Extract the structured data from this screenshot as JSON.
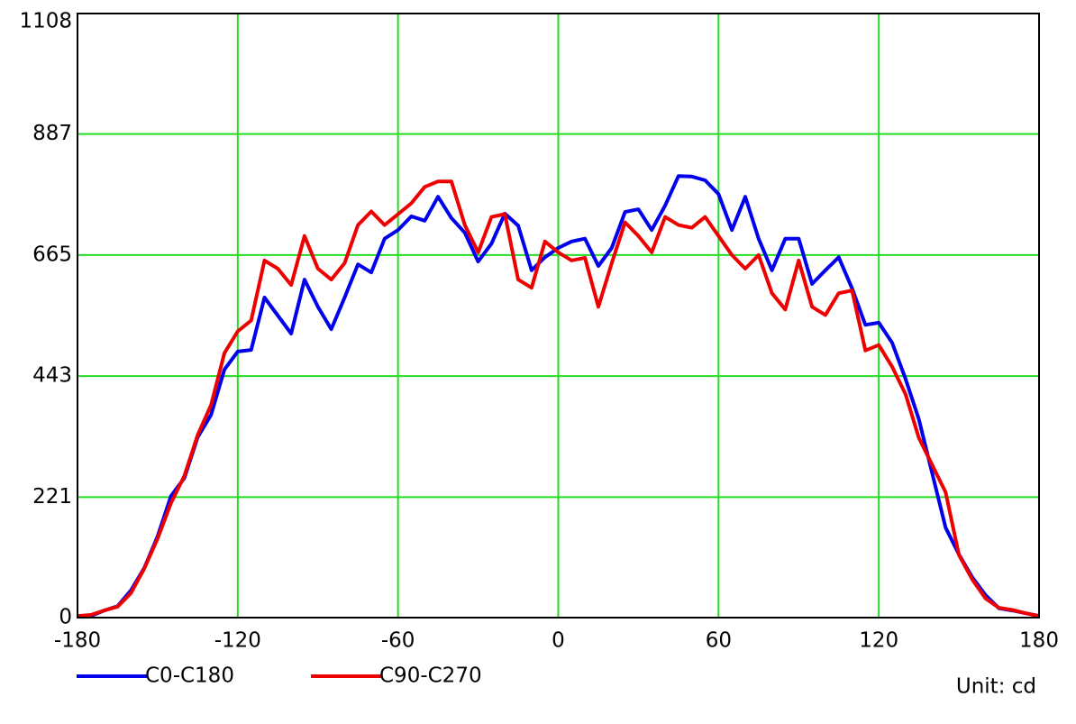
{
  "chart_data": {
    "type": "line",
    "x": [
      -180,
      -175,
      -170,
      -165,
      -160,
      -155,
      -150,
      -145,
      -140,
      -135,
      -130,
      -125,
      -120,
      -115,
      -110,
      -105,
      -100,
      -95,
      -90,
      -85,
      -80,
      -75,
      -70,
      -65,
      -60,
      -55,
      -50,
      -45,
      -40,
      -35,
      -30,
      -25,
      -20,
      -15,
      -10,
      -5,
      0,
      5,
      10,
      15,
      20,
      25,
      30,
      35,
      40,
      45,
      50,
      55,
      60,
      65,
      70,
      75,
      80,
      85,
      90,
      95,
      100,
      105,
      110,
      115,
      120,
      125,
      130,
      135,
      140,
      145,
      150,
      155,
      160,
      165,
      170,
      175,
      180
    ],
    "series": [
      {
        "name": "C0-C180",
        "color": "#0000ee",
        "values": [
          3,
          3,
          13,
          21,
          50,
          91,
          149,
          223,
          256,
          331,
          372,
          455,
          488,
          491,
          587,
          554,
          521,
          620,
          570,
          529,
          587,
          648,
          633,
          695,
          711,
          736,
          728,
          772,
          733,
          706,
          653,
          686,
          741,
          719,
          637,
          661,
          678,
          690,
          695,
          645,
          678,
          744,
          749,
          711,
          756,
          810,
          809,
          802,
          777,
          711,
          772,
          695,
          637,
          695,
          695,
          612,
          637,
          661,
          604,
          537,
          541,
          504,
          438,
          364,
          265,
          165,
          116,
          74,
          41,
          17,
          13,
          8,
          3
        ]
      },
      {
        "name": "C90-C270",
        "color": "#ee0000",
        "values": [
          3,
          5,
          13,
          20,
          45,
          90,
          145,
          210,
          260,
          335,
          390,
          485,
          525,
          545,
          655,
          640,
          610,
          700,
          640,
          620,
          650,
          720,
          745,
          720,
          740,
          760,
          790,
          800,
          800,
          720,
          670,
          735,
          740,
          620,
          605,
          690,
          670,
          655,
          660,
          570,
          650,
          725,
          700,
          670,
          735,
          720,
          715,
          735,
          700,
          665,
          640,
          665,
          595,
          565,
          655,
          570,
          555,
          595,
          600,
          490,
          500,
          460,
          410,
          330,
          280,
          230,
          115,
          70,
          35,
          18,
          14,
          8,
          3
        ]
      }
    ],
    "xlim": [
      -180,
      180
    ],
    "xticks": [
      -180,
      -120,
      -60,
      0,
      60,
      120,
      180
    ],
    "ylim": [
      0,
      1108
    ],
    "yticks": [
      0,
      221,
      443,
      665,
      887,
      1108
    ],
    "grid": true,
    "annotation": "Unit: cd"
  }
}
